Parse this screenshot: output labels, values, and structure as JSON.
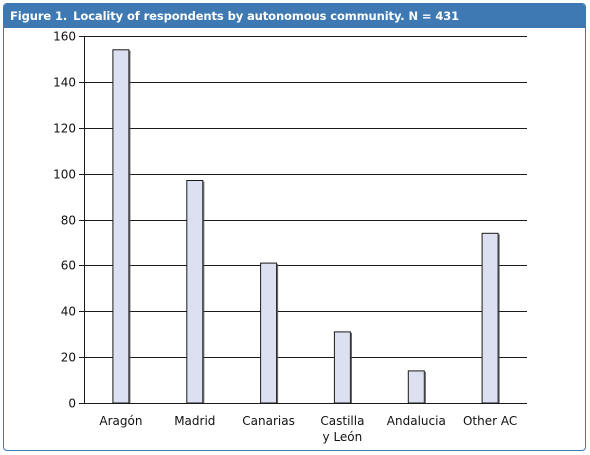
{
  "figure": {
    "label": "Figure 1.",
    "caption": "Locality of respondents by autonomous community. N = 431"
  },
  "chart_data": {
    "type": "bar",
    "title": "Figure 1.  Locality of respondents by autonomous community. N = 431",
    "categories": [
      [
        "Aragón"
      ],
      [
        "Madrid"
      ],
      [
        "Canarias"
      ],
      [
        "Castilla",
        "y León"
      ],
      [
        "Andalucia"
      ],
      [
        "Other AC"
      ]
    ],
    "values": [
      154,
      97,
      61,
      31,
      14,
      74
    ],
    "ylim": [
      0,
      160
    ],
    "yticks": [
      0,
      20,
      40,
      60,
      80,
      100,
      120,
      140,
      160
    ],
    "grid": true,
    "bar_fill": "#dde0f1",
    "bar_stroke": "#1a1a1a",
    "accent": "#3e79b4"
  }
}
